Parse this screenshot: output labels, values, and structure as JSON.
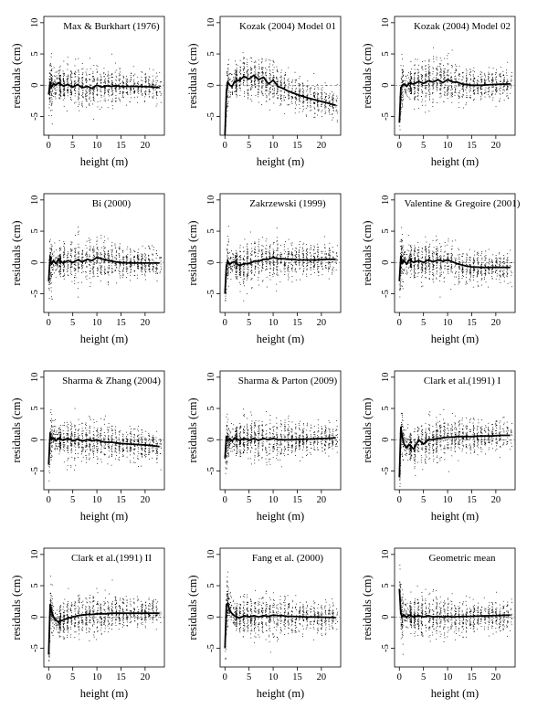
{
  "figure": {
    "colors": {
      "ink": "#000000",
      "points": "#000000",
      "background": "#ffffff"
    },
    "x_axis_label": "height (m)",
    "y_axis_label": "residuals (cm)"
  },
  "chart_data": [
    {
      "type": "scatter",
      "title": "Max & Burkhart (1976)",
      "xlabel": "height (m)",
      "ylabel": "residuals (cm)",
      "xlim": [
        -1,
        24
      ],
      "ylim": [
        -8,
        11
      ],
      "xticks": [
        0,
        5,
        10,
        15,
        20
      ],
      "yticks": [
        -5,
        0,
        5,
        10
      ],
      "reference_line_y": 0,
      "smooth_trend": {
        "x": [
          0,
          0.3,
          0.6,
          1,
          1.5,
          2,
          3,
          4,
          5,
          6,
          7,
          8,
          9,
          10,
          11,
          12,
          13,
          14,
          15,
          17,
          19,
          21,
          23
        ],
        "y": [
          -1.5,
          0.5,
          -0.3,
          0.2,
          0,
          0.4,
          -0.1,
          0.1,
          -0.3,
          0.1,
          -0.4,
          -0.2,
          -0.5,
          0,
          -0.3,
          -0.1,
          -0.2,
          -0.1,
          -0.2,
          -0.2,
          -0.2,
          -0.25,
          -0.35
        ]
      }
    },
    {
      "type": "scatter",
      "title": "Kozak (2004) Model 01",
      "xlabel": "height (m)",
      "ylabel": "residuals (cm)",
      "xlim": [
        -1,
        24
      ],
      "ylim": [
        -8,
        11
      ],
      "xticks": [
        0,
        5,
        10,
        15,
        20
      ],
      "yticks": [
        -5,
        0,
        5,
        10
      ],
      "reference_line_y": 0,
      "smooth_trend": {
        "x": [
          0,
          0.3,
          0.6,
          1,
          1.5,
          2,
          3,
          4,
          5,
          6,
          7,
          8,
          9,
          10,
          11,
          12,
          13,
          14,
          15,
          17,
          19,
          21,
          23
        ],
        "y": [
          -8,
          -1,
          0.5,
          0,
          -0.2,
          0.6,
          0.8,
          1.4,
          1,
          1.6,
          0.9,
          1.3,
          0.2,
          0.8,
          -0.2,
          -0.5,
          -0.9,
          -1.2,
          -1.5,
          -2,
          -2.4,
          -2.8,
          -3.2
        ]
      }
    },
    {
      "type": "scatter",
      "title": "Kozak (2004) Model 02",
      "xlabel": "height (m)",
      "ylabel": "residuals (cm)",
      "xlim": [
        -1,
        24
      ],
      "ylim": [
        -8,
        11
      ],
      "xticks": [
        0,
        5,
        10,
        15,
        20
      ],
      "yticks": [
        -5,
        0,
        5,
        10
      ],
      "reference_line_y": 0,
      "smooth_trend": {
        "x": [
          0,
          0.3,
          0.6,
          1,
          1.5,
          2,
          3,
          4,
          5,
          6,
          7,
          8,
          9,
          10,
          11,
          12,
          13,
          14,
          15,
          17,
          19,
          21,
          23
        ],
        "y": [
          -6,
          -0.5,
          0,
          0.2,
          -0.2,
          0.3,
          0.2,
          0.6,
          0.3,
          0.7,
          0.5,
          0.9,
          0.4,
          0.9,
          0.5,
          0.5,
          0.2,
          0.1,
          0.0,
          0.0,
          0.1,
          0.15,
          0.2
        ]
      }
    },
    {
      "type": "scatter",
      "title": "Bi (2000)",
      "xlabel": "height (m)",
      "ylabel": "residuals (cm)",
      "xlim": [
        -1,
        24
      ],
      "ylim": [
        -8,
        11
      ],
      "xticks": [
        0,
        5,
        10,
        15,
        20
      ],
      "yticks": [
        -5,
        0,
        5,
        10
      ],
      "reference_line_y": 0,
      "smooth_trend": {
        "x": [
          0,
          0.3,
          0.6,
          1,
          1.5,
          2,
          3,
          4,
          5,
          6,
          7,
          8,
          9,
          10,
          11,
          12,
          13,
          14,
          15,
          17,
          19,
          21,
          23
        ],
        "y": [
          -3,
          1,
          -0.3,
          0.3,
          -0.2,
          0.5,
          -0.1,
          0.3,
          0,
          0.4,
          0.1,
          0.5,
          0.3,
          0.8,
          0.6,
          0.4,
          0.2,
          0.1,
          0,
          -0.1,
          -0.1,
          -0.1,
          -0.1
        ]
      }
    },
    {
      "type": "scatter",
      "title": "Zakrzewski (1999)",
      "xlabel": "height (m)",
      "ylabel": "residuals (cm)",
      "xlim": [
        -1,
        24
      ],
      "ylim": [
        -8,
        11
      ],
      "xticks": [
        0,
        5,
        10,
        15,
        20
      ],
      "yticks": [
        -5,
        0,
        5,
        10
      ],
      "reference_line_y": 0,
      "smooth_trend": {
        "x": [
          0,
          0.3,
          0.6,
          1,
          1.5,
          2,
          3,
          4,
          5,
          6,
          7,
          8,
          9,
          10,
          11,
          12,
          13,
          14,
          15,
          17,
          19,
          21,
          23
        ],
        "y": [
          -5,
          -0.5,
          0.2,
          -0.3,
          0,
          0.1,
          -0.5,
          -0.2,
          -0.2,
          0.2,
          0.2,
          0.5,
          0.5,
          0.8,
          0.6,
          0.6,
          0.5,
          0.5,
          0.4,
          0.4,
          0.4,
          0.5,
          0.5
        ]
      }
    },
    {
      "type": "scatter",
      "title": "Valentine & Gregoire (2001)",
      "xlabel": "height (m)",
      "ylabel": "residuals (cm)",
      "xlim": [
        -1,
        24
      ],
      "ylim": [
        -8,
        11
      ],
      "xticks": [
        0,
        5,
        10,
        15,
        20
      ],
      "yticks": [
        -5,
        0,
        5,
        10
      ],
      "reference_line_y": 0,
      "smooth_trend": {
        "x": [
          0,
          0.3,
          0.6,
          1,
          1.5,
          2,
          3,
          4,
          5,
          6,
          7,
          8,
          9,
          10,
          11,
          12,
          13,
          14,
          15,
          17,
          19,
          21,
          23
        ],
        "y": [
          -3,
          1,
          -0.2,
          0.3,
          -0.3,
          0.4,
          0,
          0.3,
          0,
          0.4,
          0.1,
          0.4,
          0.2,
          0.4,
          0.1,
          -0.2,
          -0.4,
          -0.6,
          -0.7,
          -0.8,
          -0.8,
          -0.8,
          -0.8
        ]
      }
    },
    {
      "type": "scatter",
      "title": "Sharma & Zhang (2004)",
      "xlabel": "height (m)",
      "ylabel": "residuals (cm)",
      "xlim": [
        -1,
        24
      ],
      "ylim": [
        -8,
        11
      ],
      "xticks": [
        0,
        5,
        10,
        15,
        20
      ],
      "yticks": [
        -5,
        0,
        5,
        10
      ],
      "reference_line_y": 0,
      "smooth_trend": {
        "x": [
          0,
          0.3,
          0.6,
          1,
          1.5,
          2,
          3,
          4,
          5,
          6,
          7,
          8,
          9,
          10,
          11,
          12,
          13,
          14,
          15,
          17,
          19,
          21,
          23
        ],
        "y": [
          -4,
          1,
          0,
          0.3,
          -0.2,
          0.2,
          -0.1,
          0.2,
          -0.2,
          0.1,
          -0.2,
          0,
          -0.2,
          0,
          -0.3,
          -0.4,
          -0.4,
          -0.5,
          -0.6,
          -0.7,
          -0.8,
          -0.9,
          -1.1
        ]
      }
    },
    {
      "type": "scatter",
      "title": "Sharma & Parton (2009)",
      "xlabel": "height (m)",
      "ylabel": "residuals (cm)",
      "xlim": [
        -1,
        24
      ],
      "ylim": [
        -8,
        11
      ],
      "xticks": [
        0,
        5,
        10,
        15,
        20
      ],
      "yticks": [
        -5,
        0,
        5,
        10
      ],
      "reference_line_y": 0,
      "smooth_trend": {
        "x": [
          0,
          0.3,
          0.6,
          1,
          1.5,
          2,
          3,
          4,
          5,
          6,
          7,
          8,
          9,
          10,
          11,
          12,
          13,
          14,
          15,
          17,
          19,
          21,
          23
        ],
        "y": [
          -3,
          0.5,
          -0.2,
          0.2,
          -0.2,
          0.3,
          -0.1,
          0.2,
          -0.1,
          0.2,
          -0.1,
          0.2,
          0,
          0.2,
          0,
          0,
          0,
          0,
          0.05,
          0.1,
          0.15,
          0.2,
          0.3
        ]
      }
    },
    {
      "type": "scatter",
      "title": "Clark et al.(1991) I",
      "xlabel": "height (m)",
      "ylabel": "residuals (cm)",
      "xlim": [
        -1,
        24
      ],
      "ylim": [
        -8,
        11
      ],
      "xticks": [
        0,
        5,
        10,
        15,
        20
      ],
      "yticks": [
        -5,
        0,
        5,
        10
      ],
      "reference_line_y": 0,
      "smooth_trend": {
        "x": [
          0,
          0.3,
          0.6,
          1,
          1.5,
          2,
          3,
          4,
          5,
          6,
          7,
          8,
          9,
          10,
          11,
          12,
          13,
          14,
          15,
          17,
          19,
          21,
          23
        ],
        "y": [
          -6,
          2,
          0.5,
          -0.8,
          -1.2,
          -0.8,
          -1.5,
          0,
          -0.7,
          0,
          0,
          0.2,
          0.3,
          0.4,
          0.4,
          0.5,
          0.5,
          0.5,
          0.5,
          0.6,
          0.6,
          0.7,
          0.7
        ]
      }
    },
    {
      "type": "scatter",
      "title": "Clark et al.(1991) II",
      "xlabel": "height (m)",
      "ylabel": "residuals (cm)",
      "xlim": [
        -1,
        24
      ],
      "ylim": [
        -8,
        11
      ],
      "xticks": [
        0,
        5,
        10,
        15,
        20
      ],
      "yticks": [
        -5,
        0,
        5,
        10
      ],
      "reference_line_y": 0,
      "smooth_trend": {
        "x": [
          0,
          0.3,
          0.6,
          1,
          1.5,
          2,
          3,
          4,
          5,
          6,
          7,
          8,
          9,
          10,
          11,
          12,
          13,
          14,
          15,
          17,
          19,
          21,
          23
        ],
        "y": [
          -6,
          2,
          1,
          0,
          -0.5,
          -0.8,
          -0.5,
          -0.2,
          0,
          0.2,
          0.3,
          0.4,
          0.4,
          0.5,
          0.5,
          0.5,
          0.6,
          0.6,
          0.6,
          0.6,
          0.6,
          0.6,
          0.6
        ]
      }
    },
    {
      "type": "scatter",
      "title": "Fang et al. (2000)",
      "xlabel": "height (m)",
      "ylabel": "residuals (cm)",
      "xlim": [
        -1,
        24
      ],
      "ylim": [
        -8,
        11
      ],
      "xticks": [
        0,
        5,
        10,
        15,
        20
      ],
      "yticks": [
        -5,
        0,
        5,
        10
      ],
      "reference_line_y": 0,
      "smooth_trend": {
        "x": [
          0,
          0.3,
          0.6,
          1,
          1.5,
          2,
          3,
          4,
          5,
          6,
          7,
          8,
          9,
          10,
          11,
          12,
          13,
          14,
          15,
          17,
          19,
          21,
          23
        ],
        "y": [
          -5,
          2,
          2.2,
          1,
          0.5,
          0.2,
          -0.2,
          0.2,
          0,
          0.2,
          0,
          0.2,
          0.1,
          0.3,
          0.2,
          0.2,
          0.1,
          0.1,
          0.05,
          0,
          0,
          -0.05,
          -0.1
        ]
      }
    },
    {
      "type": "scatter",
      "title": "Geometric mean",
      "xlabel": "height (m)",
      "ylabel": "residuals (cm)",
      "xlim": [
        -1,
        24
      ],
      "ylim": [
        -8,
        11
      ],
      "xticks": [
        0,
        5,
        10,
        15,
        20
      ],
      "yticks": [
        -5,
        0,
        5,
        10
      ],
      "reference_line_y": 0,
      "smooth_trend": {
        "x": [
          0,
          0.3,
          0.6,
          1,
          1.5,
          2,
          3,
          4,
          5,
          6,
          7,
          8,
          9,
          10,
          11,
          12,
          13,
          14,
          15,
          17,
          19,
          21,
          23
        ],
        "y": [
          4.5,
          0.5,
          0,
          0.3,
          -0.1,
          0.3,
          0,
          0.2,
          0,
          0.2,
          0,
          0.1,
          0,
          0.1,
          0,
          0.05,
          0.05,
          0.1,
          0.1,
          0.15,
          0.2,
          0.25,
          0.3
        ]
      }
    }
  ]
}
